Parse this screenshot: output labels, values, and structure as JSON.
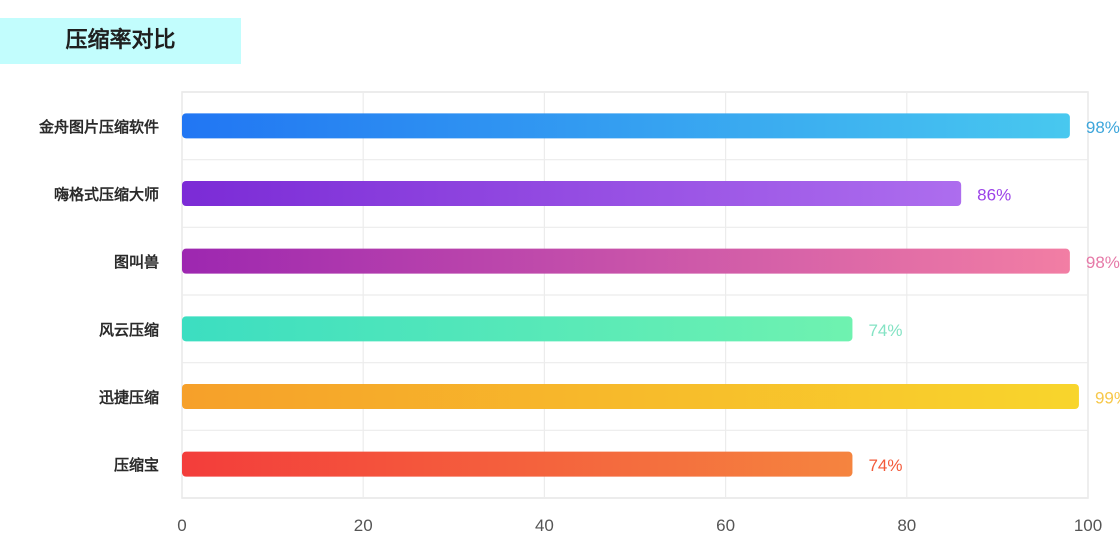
{
  "header": {
    "title": "压缩率对比"
  },
  "chart_data": {
    "type": "bar",
    "orientation": "horizontal",
    "title": "压缩率对比",
    "categories": [
      "金舟图片压缩软件",
      "嗨格式压缩大师",
      "图叫兽",
      "风云压缩",
      "迅捷压缩",
      "压缩宝"
    ],
    "values": [
      98,
      86,
      98,
      74,
      99,
      74
    ],
    "value_labels": [
      "98%",
      "86%",
      "98%",
      "74%",
      "99%",
      "74%"
    ],
    "x_ticks": [
      "0",
      "20",
      "40",
      "60",
      "80",
      "100"
    ],
    "xlim": [
      0,
      100
    ],
    "grid": true,
    "bar_gradients": [
      [
        "#2176f3",
        "#48c8ef"
      ],
      [
        "#7b2bd6",
        "#ad6dee"
      ],
      [
        "#9d27b0",
        "#f27ea4"
      ],
      [
        "#3cdec1",
        "#6ff2b0"
      ],
      [
        "#f6a02a",
        "#f8d52c"
      ],
      [
        "#f33d3b",
        "#f5843f"
      ]
    ],
    "label_colors": [
      "#3ea6db",
      "#9b42e8",
      "#e67aa8",
      "#84e3c4",
      "#f7c84a",
      "#f35a3a"
    ]
  }
}
